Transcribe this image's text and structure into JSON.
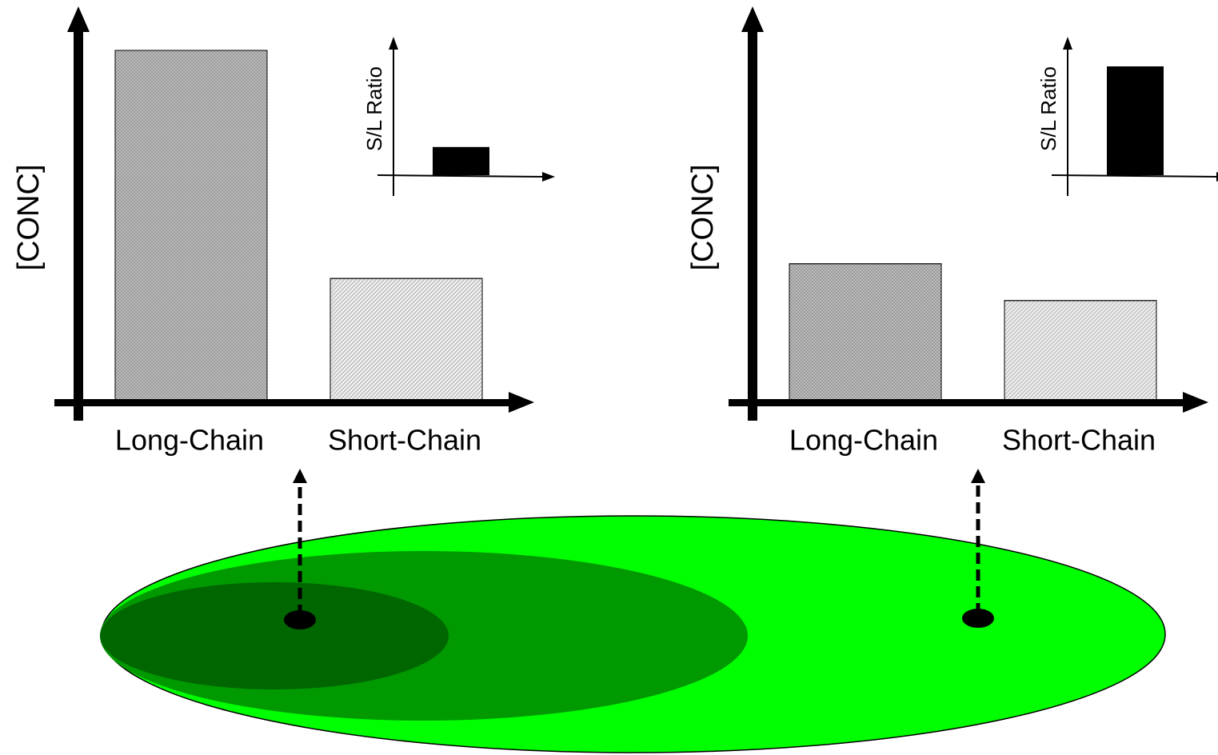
{
  "chart_data": [
    {
      "type": "bar",
      "y_label": "[CONC]",
      "categories": [
        "Long-Chain",
        "Short-Chain"
      ],
      "values": [
        95,
        33
      ],
      "colors": [
        "#c4c4c4",
        "#ececec"
      ],
      "ylim": [
        0,
        100
      ],
      "inset": {
        "type": "bar",
        "y_label": "S/L Ratio",
        "categories": [
          null
        ],
        "values": [
          22
        ],
        "color": "#000000",
        "ylim": [
          0,
          100
        ]
      }
    },
    {
      "type": "bar",
      "y_label": "[CONC]",
      "categories": [
        "Long-Chain",
        "Short-Chain"
      ],
      "values": [
        37,
        27
      ],
      "colors": [
        "#c4c4c4",
        "#ececec"
      ],
      "ylim": [
        0,
        100
      ],
      "inset": {
        "type": "bar",
        "y_label": "S/L Ratio",
        "categories": [
          null
        ],
        "values": [
          85
        ],
        "color": "#000000",
        "ylim": [
          0,
          100
        ]
      }
    }
  ]
}
